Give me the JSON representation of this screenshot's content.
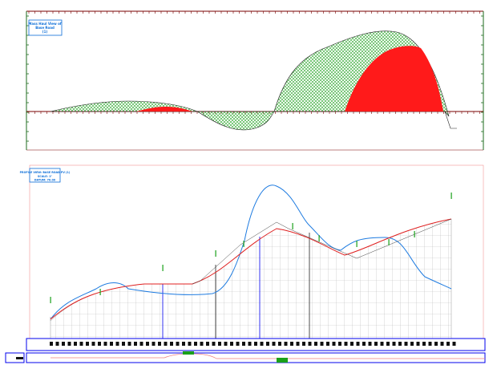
{
  "mass_haul_view": {
    "title_lines": [
      "Mass Haul View of",
      "Base Road",
      "(1)"
    ],
    "colors": {
      "frame": "#7a0000",
      "fill_pattern": "#2fa82f",
      "overhaul": "#ff1a1a",
      "title_box": "#0a6dd8"
    }
  },
  "profile_view": {
    "title_lines": [
      "PROFILE VIEW: BASE ROAD PV (1)",
      "SCALE: 1\"",
      "DATUM: 70.00"
    ],
    "colors": {
      "existing_ground": "#1e7be0",
      "design_profile": "#e02020",
      "grid": "#bbbbbb",
      "frame": "#0000ee",
      "labels": "#1aa01a"
    }
  }
}
